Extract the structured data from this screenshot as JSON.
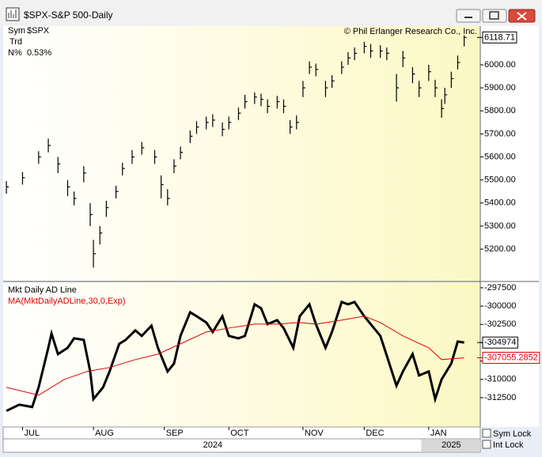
{
  "window": {
    "title": "$SPX-S&P 500-Daily"
  },
  "info": {
    "sym_label": "Sym",
    "sym": "$SPX",
    "trd": "Trd",
    "n_label": "N%",
    "n": "0.53%",
    "copyright": "© Phil Erlanger Research Co., Inc."
  },
  "locks": [
    "Sym Lock",
    "Int Lock"
  ],
  "chart_data": [
    {
      "type": "ohlc",
      "color": "#000000",
      "x": [
        0,
        5,
        10,
        13,
        16,
        19,
        21,
        24,
        26,
        27,
        29,
        31,
        34,
        36,
        39,
        42,
        46,
        48,
        50,
        52,
        54,
        57,
        59,
        62,
        64,
        67,
        69,
        72,
        74,
        77,
        79,
        81,
        84,
        86,
        88,
        90,
        92,
        94,
        96,
        99,
        101,
        104,
        106,
        108,
        111,
        113,
        116,
        118,
        121,
        123,
        126,
        128,
        131,
        133,
        135,
        136,
        138,
        140,
        142
      ],
      "high": [
        5495,
        5535,
        5625,
        5680,
        5600,
        5500,
        5450,
        5560,
        5400,
        5240,
        5300,
        5410,
        5475,
        5575,
        5630,
        5665,
        5630,
        5520,
        5460,
        5590,
        5645,
        5715,
        5755,
        5775,
        5785,
        5750,
        5775,
        5815,
        5870,
        5880,
        5875,
        5850,
        5865,
        5850,
        5760,
        5780,
        5930,
        6015,
        6005,
        5930,
        5955,
        6015,
        6055,
        6075,
        6100,
        6090,
        6085,
        6075,
        5960,
        6060,
        5990,
        5930,
        6000,
        5935,
        5850,
        5900,
        5970,
        6040,
        6128
      ],
      "low": [
        5440,
        5480,
        5570,
        5620,
        5530,
        5430,
        5390,
        5490,
        5300,
        5120,
        5220,
        5340,
        5420,
        5520,
        5570,
        5610,
        5570,
        5420,
        5390,
        5530,
        5590,
        5660,
        5700,
        5720,
        5730,
        5690,
        5720,
        5760,
        5810,
        5830,
        5820,
        5790,
        5810,
        5790,
        5700,
        5720,
        5860,
        5960,
        5950,
        5860,
        5900,
        5960,
        6000,
        6020,
        6050,
        6030,
        6030,
        6020,
        5840,
        5990,
        5920,
        5860,
        5930,
        5860,
        5770,
        5830,
        5900,
        5980,
        6080
      ],
      "close": [
        5470,
        5510,
        5600,
        5650,
        5570,
        5470,
        5420,
        5530,
        5350,
        5180,
        5270,
        5380,
        5450,
        5550,
        5600,
        5640,
        5600,
        5480,
        5420,
        5560,
        5620,
        5690,
        5730,
        5750,
        5760,
        5720,
        5750,
        5790,
        5840,
        5860,
        5850,
        5820,
        5840,
        5820,
        5730,
        5750,
        5900,
        5990,
        5980,
        5900,
        5930,
        5990,
        6030,
        6050,
        6080,
        6060,
        6060,
        6050,
        5900,
        6030,
        5960,
        5900,
        5970,
        5900,
        5810,
        5870,
        5940,
        6010,
        6118.71
      ],
      "xlim": [
        -1,
        147
      ],
      "ylim": [
        5063,
        6168
      ],
      "yticks": [
        {
          "value": 6000,
          "label": "6000.00"
        },
        {
          "value": 5900,
          "label": "5900.00"
        },
        {
          "value": 5800,
          "label": "5800.00"
        },
        {
          "value": 5700,
          "label": "5700.00"
        },
        {
          "value": 5600,
          "label": "5600.00"
        },
        {
          "value": 5500,
          "label": "5500.00"
        },
        {
          "value": 5400,
          "label": "5400.00"
        },
        {
          "value": 5300,
          "label": "5300.00"
        },
        {
          "value": 5200,
          "label": "5200.00"
        }
      ]
    },
    {
      "type": "line",
      "series": [
        {
          "name": "Mkt Daily AD Line",
          "color": "#000000",
          "x": [
            0,
            4,
            8,
            10,
            13,
            14,
            16,
            19,
            21,
            24,
            26,
            27,
            30,
            32,
            35,
            37,
            40,
            42,
            45,
            47,
            50,
            52,
            54,
            57,
            59,
            62,
            64,
            67,
            69,
            72,
            74,
            77,
            79,
            81,
            84,
            86,
            89,
            91,
            94,
            96,
            99,
            101,
            104,
            106,
            108,
            111,
            113,
            116,
            118,
            121,
            123,
            126,
            128,
            131,
            133,
            135,
            138,
            140,
            142
          ],
          "values": [
            -314300,
            -313450,
            -313770,
            -311080,
            -305690,
            -303750,
            -306550,
            -305690,
            -304400,
            -304610,
            -308920,
            -312690,
            -311080,
            -308920,
            -305150,
            -304610,
            -303320,
            -304070,
            -302670,
            -305690,
            -308920,
            -307840,
            -304070,
            -300840,
            -301380,
            -302240,
            -303530,
            -301380,
            -304070,
            -304400,
            -304070,
            -299760,
            -300300,
            -302460,
            -301920,
            -303000,
            -305690,
            -301380,
            -299760,
            -302460,
            -305690,
            -303530,
            -299440,
            -299760,
            -299440,
            -301380,
            -302460,
            -304070,
            -306770,
            -310860,
            -308920,
            -306550,
            -309460,
            -308920,
            -312690,
            -310000,
            -307840,
            -304830,
            -304974
          ]
        },
        {
          "name": "MA(MktDailyADLine,30,0,Exp)",
          "color": "#e00000",
          "x": [
            0,
            10,
            18,
            25,
            32,
            40,
            47,
            54,
            62,
            69,
            77,
            84,
            91,
            96,
            104,
            111,
            116,
            123,
            131,
            135,
            142
          ],
          "values": [
            -311080,
            -312160,
            -310000,
            -308920,
            -308380,
            -307300,
            -306550,
            -305150,
            -303530,
            -303000,
            -302460,
            -302460,
            -302240,
            -302460,
            -301920,
            -301380,
            -302240,
            -304070,
            -305690,
            -307300,
            -307055.2852
          ]
        }
      ],
      "xlim": [
        -1,
        147
      ],
      "ylim": [
        -316490,
        -296750
      ],
      "yticks": [
        -297500,
        -300000,
        -302500,
        -305000,
        -307500,
        -310000,
        -312500
      ],
      "xticks": [
        {
          "value": 5,
          "label": "JUL"
        },
        {
          "value": 27,
          "label": "AUG"
        },
        {
          "value": 49,
          "label": "SEP"
        },
        {
          "value": 69,
          "label": "OCT"
        },
        {
          "value": 92,
          "label": "NOV"
        },
        {
          "value": 111,
          "label": "DEC"
        },
        {
          "value": 131,
          "label": "JAN"
        }
      ],
      "year_ticks": [
        {
          "value": 64,
          "label": "2024"
        },
        {
          "value": 138,
          "label": "2025"
        }
      ]
    }
  ]
}
